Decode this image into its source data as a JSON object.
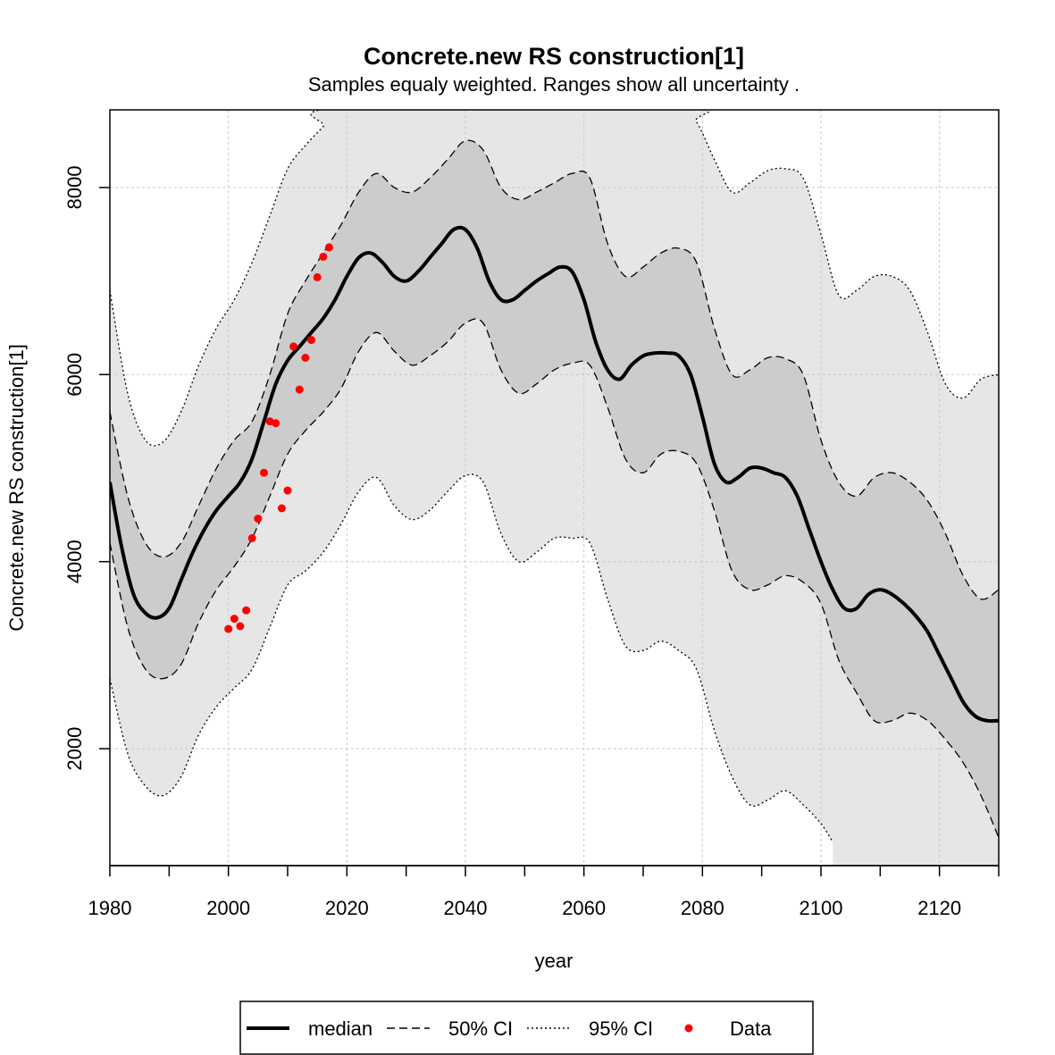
{
  "chart_data": {
    "type": "line",
    "title": "Concrete.new RS construction[1]",
    "subtitle": "Samples equaly weighted. Ranges show  all uncertainty .",
    "xlabel": "year",
    "ylabel": "Concrete.new RS construction[1]",
    "xlim": [
      1980,
      2130
    ],
    "ylim": [
      750,
      8830
    ],
    "x_ticks": [
      "1980",
      "2000",
      "2020",
      "2040",
      "2060",
      "2080",
      "2100",
      "2120"
    ],
    "y_ticks": [
      "2000",
      "4000",
      "6000",
      "8000"
    ],
    "grid": true,
    "legend_position": "bottom",
    "legend": [
      "median",
      "50% CI",
      "95% CI",
      "Data"
    ],
    "colors": {
      "band95": "#e6e6e6",
      "band50": "#cccccc",
      "median": "#000000",
      "data": "#ff0000",
      "grid": "#c8c8c8"
    },
    "series": [
      {
        "name": "median",
        "x": [
          1980,
          1982,
          1984,
          1986,
          1988,
          1990,
          1992,
          1994,
          1996,
          1998,
          2000,
          2002,
          2004,
          2006,
          2008,
          2010,
          2012,
          2014,
          2016,
          2018,
          2020,
          2022,
          2024,
          2026,
          2028,
          2030,
          2032,
          2034,
          2036,
          2038,
          2040,
          2042,
          2044,
          2046,
          2048,
          2050,
          2052,
          2054,
          2056,
          2058,
          2060,
          2062,
          2064,
          2066,
          2068,
          2070,
          2072,
          2074,
          2076,
          2078,
          2080,
          2082,
          2084,
          2086,
          2088,
          2090,
          2092,
          2094,
          2096,
          2098,
          2100,
          2102,
          2104,
          2106,
          2108,
          2110,
          2112,
          2114,
          2116,
          2118,
          2120,
          2122,
          2124,
          2126,
          2128,
          2130
        ],
        "y": [
          4850,
          4150,
          3650,
          3450,
          3400,
          3500,
          3800,
          4100,
          4350,
          4550,
          4700,
          4850,
          5100,
          5500,
          5900,
          6150,
          6300,
          6450,
          6600,
          6800,
          7050,
          7250,
          7300,
          7200,
          7050,
          7000,
          7100,
          7250,
          7400,
          7550,
          7550,
          7350,
          7000,
          6800,
          6800,
          6900,
          7000,
          7080,
          7150,
          7100,
          6800,
          6350,
          6050,
          5950,
          6100,
          6200,
          6230,
          6230,
          6200,
          6000,
          5550,
          5050,
          4850,
          4900,
          5000,
          5000,
          4950,
          4900,
          4700,
          4350,
          4000,
          3700,
          3500,
          3500,
          3650,
          3700,
          3650,
          3550,
          3420,
          3250,
          3000,
          2750,
          2500,
          2350,
          2300,
          2300
        ]
      },
      {
        "name": "50% CI upper",
        "x": [
          1980,
          1983,
          1986,
          1989,
          1992,
          1995,
          1998,
          2001,
          2004,
          2007,
          2010,
          2013,
          2016,
          2019,
          2022,
          2025,
          2028,
          2031,
          2034,
          2037,
          2040,
          2043,
          2046,
          2049,
          2052,
          2055,
          2058,
          2061,
          2064,
          2067,
          2070,
          2073,
          2076,
          2079,
          2082,
          2085,
          2088,
          2091,
          2094,
          2097,
          2100,
          2103,
          2106,
          2109,
          2112,
          2115,
          2118,
          2121,
          2124,
          2127,
          2130
        ],
        "y": [
          5600,
          4700,
          4200,
          4050,
          4200,
          4600,
          5000,
          5300,
          5500,
          6000,
          6650,
          7000,
          7300,
          7600,
          7950,
          8150,
          8000,
          7950,
          8100,
          8300,
          8500,
          8400,
          8000,
          7870,
          7950,
          8050,
          8150,
          8100,
          7400,
          7050,
          7150,
          7300,
          7350,
          7200,
          6500,
          6000,
          6050,
          6180,
          6170,
          6000,
          5300,
          4850,
          4700,
          4900,
          4950,
          4850,
          4650,
          4300,
          3850,
          3600,
          3700
        ]
      },
      {
        "name": "50% CI lower",
        "x": [
          1980,
          1983,
          1986,
          1989,
          1992,
          1995,
          1998,
          2001,
          2004,
          2007,
          2010,
          2013,
          2016,
          2019,
          2022,
          2025,
          2028,
          2031,
          2034,
          2037,
          2040,
          2043,
          2046,
          2049,
          2052,
          2055,
          2058,
          2061,
          2064,
          2067,
          2070,
          2073,
          2076,
          2079,
          2082,
          2085,
          2088,
          2091,
          2094,
          2097,
          2100,
          2103,
          2106,
          2109,
          2112,
          2115,
          2118,
          2121,
          2124,
          2127,
          2130
        ],
        "y": [
          4200,
          3300,
          2850,
          2750,
          2900,
          3350,
          3700,
          3950,
          4250,
          4700,
          5150,
          5400,
          5600,
          5850,
          6250,
          6450,
          6250,
          6100,
          6200,
          6350,
          6550,
          6550,
          6050,
          5800,
          5900,
          6050,
          6120,
          6100,
          5650,
          5100,
          4950,
          5150,
          5180,
          5050,
          4550,
          3900,
          3700,
          3750,
          3850,
          3780,
          3550,
          2950,
          2600,
          2300,
          2300,
          2380,
          2300,
          2100,
          1850,
          1500,
          1050
        ]
      },
      {
        "name": "95% CI upper",
        "x": [
          1980,
          1983,
          1986,
          1989,
          1992,
          1995,
          1998,
          2001,
          2004,
          2007,
          2010,
          2013,
          2016,
          2019,
          2076,
          2079,
          2082,
          2085,
          2088,
          2091,
          2094,
          2097,
          2100,
          2103,
          2106,
          2109,
          2112,
          2115,
          2118,
          2121,
          2124,
          2127,
          2130
        ],
        "y": [
          6900,
          5800,
          5300,
          5280,
          5600,
          6100,
          6500,
          6800,
          7200,
          7700,
          8200,
          8450,
          8650,
          8850,
          8850,
          8700,
          8300,
          7950,
          8050,
          8180,
          8200,
          8100,
          7500,
          6850,
          6900,
          7050,
          7050,
          6900,
          6450,
          5900,
          5750,
          5950,
          6000
        ]
      },
      {
        "name": "95% CI lower",
        "x": [
          1980,
          1983,
          1986,
          1989,
          1992,
          1995,
          1998,
          2001,
          2004,
          2007,
          2010,
          2013,
          2016,
          2019,
          2022,
          2025,
          2028,
          2031,
          2034,
          2037,
          2040,
          2043,
          2046,
          2049,
          2052,
          2055,
          2058,
          2061,
          2064,
          2067,
          2070,
          2073,
          2076,
          2079,
          2082,
          2085,
          2088,
          2091,
          2094,
          2097,
          2100,
          2102
        ],
        "y": [
          2750,
          1950,
          1600,
          1500,
          1700,
          2150,
          2450,
          2650,
          2850,
          3300,
          3750,
          3900,
          4100,
          4400,
          4750,
          4900,
          4600,
          4450,
          4550,
          4750,
          4920,
          4850,
          4300,
          4000,
          4100,
          4250,
          4250,
          4200,
          3600,
          3100,
          3050,
          3150,
          3050,
          2850,
          2200,
          1700,
          1400,
          1450,
          1550,
          1400,
          1200,
          1000
        ]
      },
      {
        "name": "Data",
        "x": [
          2000,
          2001,
          2002,
          2003,
          2004,
          2005,
          2006,
          2007,
          2008,
          2009,
          2010,
          2011,
          2012,
          2013,
          2014,
          2015,
          2016,
          2017
        ],
        "y": [
          3280,
          3390,
          3310,
          3480,
          4250,
          4460,
          4950,
          5500,
          5480,
          4570,
          4760,
          6300,
          5840,
          6180,
          6370,
          7040,
          7260,
          7360
        ]
      }
    ]
  }
}
